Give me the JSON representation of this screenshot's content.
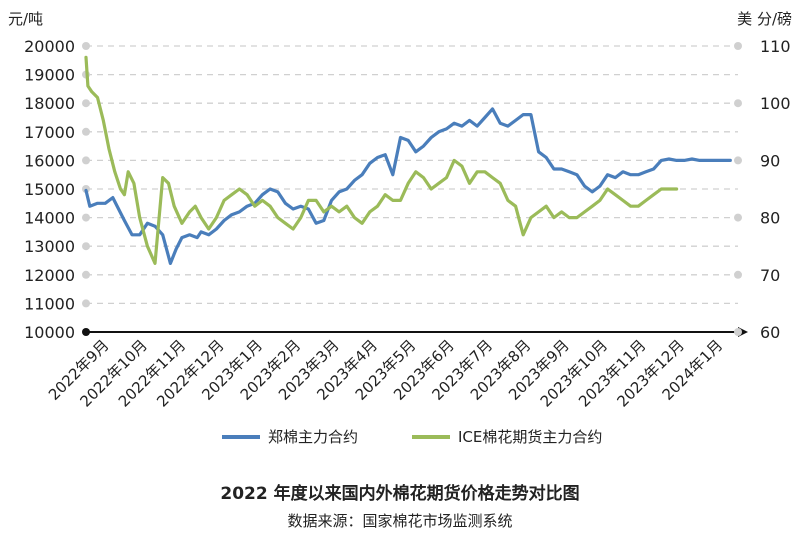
{
  "chart_data": {
    "type": "line",
    "title": "2022 年度以来国内外棉花期货价格走势对比图",
    "subtitle": "数据来源：国家棉花市场监测系统",
    "y_left_unit": "元/吨",
    "y_right_unit": "美 分/磅",
    "y_left_lim": [
      10000,
      20000
    ],
    "y_right_lim": [
      60,
      110
    ],
    "y_left_ticks": [
      "20000",
      "19000",
      "18000",
      "17000",
      "16000",
      "15000",
      "14000",
      "13000",
      "12000",
      "11000",
      "10000"
    ],
    "y_right_ticks": [
      "110",
      "100",
      "90",
      "80",
      "70",
      "60"
    ],
    "x_ticks": [
      "2022年9月",
      "2022年10月",
      "2022年11月",
      "2022年12月",
      "2023年1月",
      "2023年2月",
      "2023年3月",
      "2023年4月",
      "2023年5月",
      "2023年6月",
      "2023年7月",
      "2023年8月",
      "2023年9月",
      "2023年10月",
      "2023年11月",
      "2023年12月",
      "2024年1月"
    ],
    "grid": true,
    "legend_position": "bottom",
    "series": [
      {
        "name": "郑棉主力合约",
        "axis": "left",
        "color": "#4a7ebb",
        "x": [
          0,
          0.1,
          0.3,
          0.5,
          0.7,
          1.0,
          1.2,
          1.4,
          1.6,
          1.8,
          2.0,
          2.2,
          2.35,
          2.5,
          2.7,
          2.9,
          3.0,
          3.2,
          3.4,
          3.6,
          3.8,
          4.0,
          4.2,
          4.4,
          4.6,
          4.8,
          5.0,
          5.2,
          5.4,
          5.6,
          5.8,
          6.0,
          6.2,
          6.4,
          6.6,
          6.8,
          7.0,
          7.2,
          7.4,
          7.6,
          7.8,
          8.0,
          8.2,
          8.4,
          8.6,
          8.8,
          9.0,
          9.2,
          9.4,
          9.6,
          9.8,
          10.0,
          10.2,
          10.4,
          10.6,
          10.8,
          11.0,
          11.2,
          11.4,
          11.6,
          11.8,
          12.0,
          12.2,
          12.4,
          12.6,
          12.8,
          13.0,
          13.2,
          13.4,
          13.6,
          13.8,
          14.0,
          14.2,
          14.4,
          14.6,
          14.8,
          15.0,
          15.2,
          15.4,
          15.6,
          15.8,
          16.0,
          16.2,
          16.4,
          16.6,
          16.8
        ],
        "values": [
          14950,
          14400,
          14500,
          14500,
          14700,
          13900,
          13400,
          13400,
          13800,
          13700,
          13400,
          12400,
          12900,
          13300,
          13400,
          13300,
          13500,
          13400,
          13600,
          13900,
          14100,
          14200,
          14400,
          14500,
          14800,
          15000,
          14900,
          14500,
          14300,
          14400,
          14300,
          13800,
          13900,
          14600,
          14900,
          15000,
          15300,
          15500,
          15900,
          16100,
          16200,
          15500,
          16800,
          16700,
          16300,
          16500,
          16800,
          17000,
          17100,
          17300,
          17200,
          17400,
          17200,
          17500,
          17800,
          17300,
          17200,
          17400,
          17600,
          17600,
          16300,
          16100,
          15700,
          15700,
          15600,
          15500,
          15100,
          14900,
          15100,
          15500,
          15400,
          15600,
          15500,
          15500,
          15600,
          15700,
          16000,
          16050,
          16000,
          16000,
          16050,
          16000,
          16000,
          16000,
          16000,
          16000
        ]
      },
      {
        "name": "ICE棉花期货主力合约",
        "axis": "right",
        "color": "#9bbb59",
        "x": [
          0,
          0.05,
          0.15,
          0.3,
          0.45,
          0.6,
          0.75,
          0.9,
          1.0,
          1.1,
          1.25,
          1.4,
          1.6,
          1.8,
          2.0,
          2.15,
          2.3,
          2.5,
          2.7,
          2.85,
          3.0,
          3.2,
          3.4,
          3.6,
          3.8,
          4.0,
          4.2,
          4.4,
          4.6,
          4.8,
          5.0,
          5.2,
          5.4,
          5.6,
          5.8,
          6.0,
          6.2,
          6.4,
          6.6,
          6.8,
          7.0,
          7.2,
          7.4,
          7.6,
          7.8,
          8.0,
          8.2,
          8.4,
          8.6,
          8.8,
          9.0,
          9.2,
          9.4,
          9.6,
          9.8,
          10.0,
          10.2,
          10.4,
          10.6,
          10.8,
          11.0,
          11.2,
          11.4,
          11.6,
          11.8,
          12.0,
          12.2,
          12.4,
          12.6,
          12.8,
          13.0,
          13.2,
          13.4,
          13.6,
          13.8,
          14.0,
          14.2,
          14.4,
          14.6,
          14.8,
          15.0,
          15.2,
          15.4
        ],
        "values": [
          108,
          103,
          102,
          101,
          97,
          92,
          88,
          85,
          84,
          88,
          86,
          80,
          75,
          72,
          87,
          86,
          82,
          79,
          81,
          82,
          80,
          78,
          80,
          83,
          84,
          85,
          84,
          82,
          83,
          82,
          80,
          79,
          78,
          80,
          83,
          83,
          81,
          82,
          81,
          82,
          80,
          79,
          81,
          82,
          84,
          83,
          83,
          86,
          88,
          87,
          85,
          86,
          87,
          90,
          89,
          86,
          88,
          88,
          87,
          86,
          83,
          82,
          77,
          80,
          81,
          82,
          80,
          81,
          80,
          80,
          81,
          82,
          83,
          85,
          84,
          83,
          82,
          82,
          83,
          84,
          85,
          85,
          85
        ]
      }
    ]
  }
}
